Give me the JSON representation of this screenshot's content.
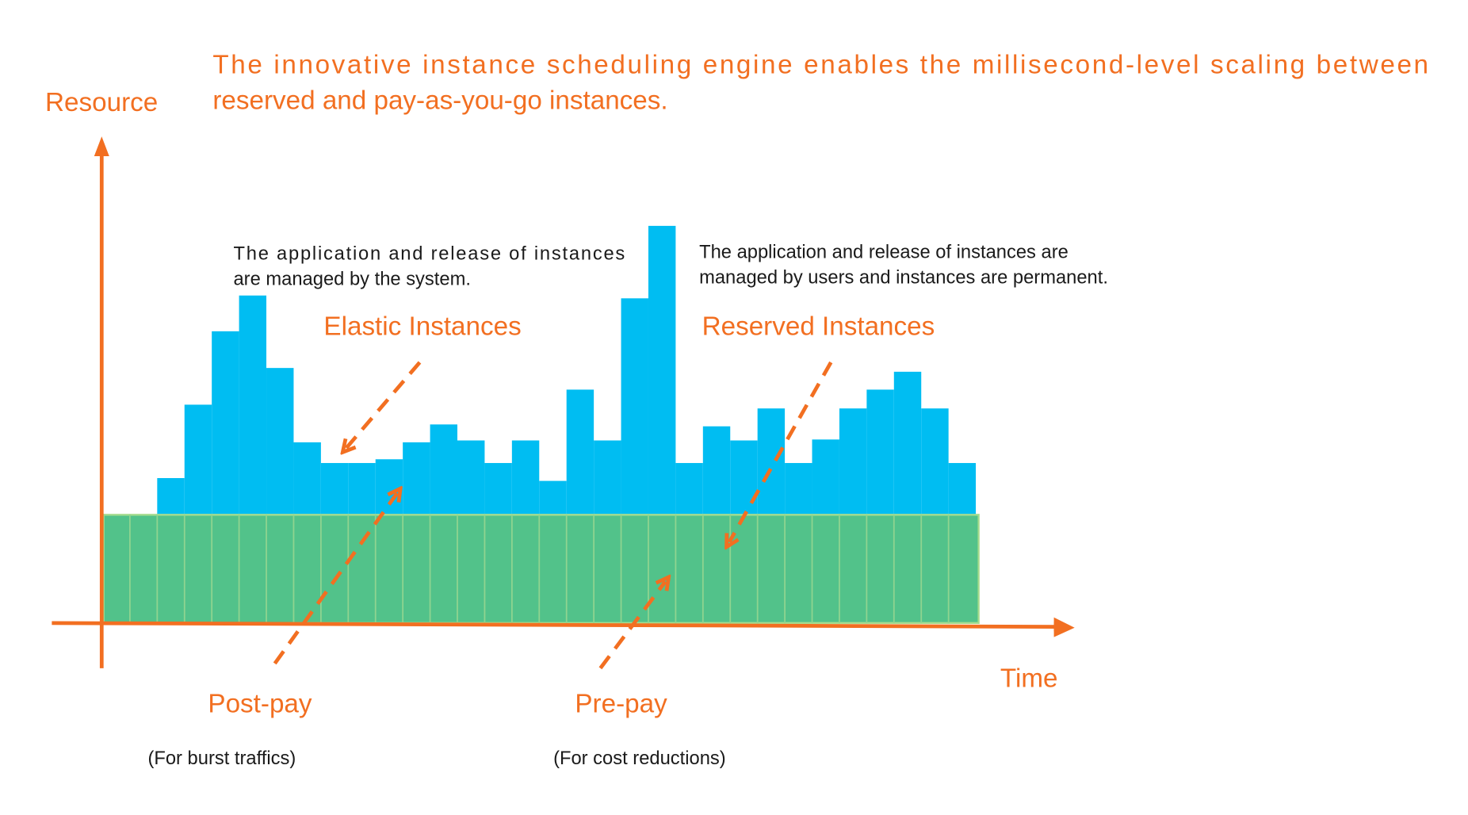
{
  "header": {
    "title_lines": [
      "The innovative instance scheduling engine enables the millisecond-level scaling between",
      "reserved and pay-as-you-go instances."
    ]
  },
  "axes": {
    "y_label": "Resource",
    "x_label": "Time"
  },
  "regions": [
    {
      "label": "Elastic Instances",
      "description_lines": [
        "The application and release of instances",
        "are managed by the system."
      ],
      "billing": "Post-pay",
      "billing_note": "(For burst traffics)"
    },
    {
      "label": "Reserved Instances",
      "description_lines": [
        "The application and release of instances are",
        "managed by users and instances are permanent."
      ],
      "billing": "Pre-pay",
      "billing_note": "(For cost reductions)"
    }
  ]
}
